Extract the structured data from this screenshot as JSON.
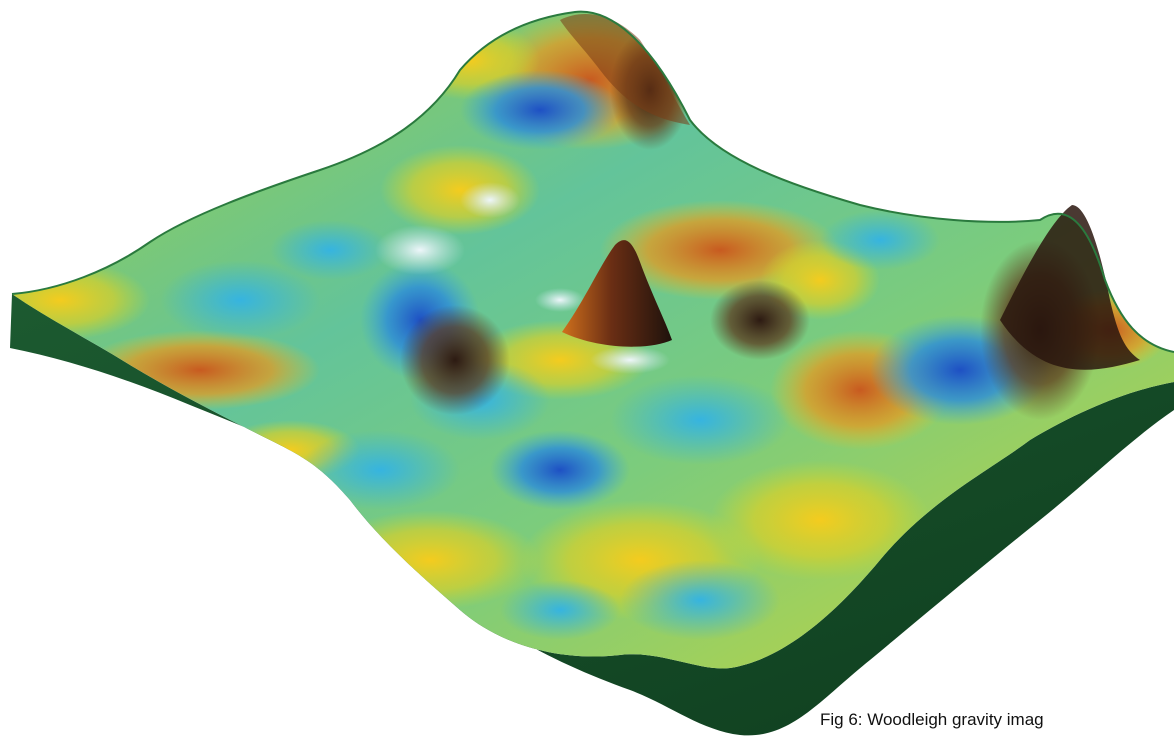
{
  "figure": {
    "caption": "Fig 6: Woodleigh gravity imag",
    "content": "3D gravity surface rendering",
    "colors": {
      "base": "#17502a",
      "edge": "#1f5e2e",
      "low": "#1f4fc0",
      "mid_low": "#3aa8d8",
      "mid": "#5cc6a4",
      "mid_high": "#a8cf3a",
      "high": "#f0c21c",
      "peak": "#c25a22",
      "shadow": "#3a2418",
      "highlight": "#e4f2f8"
    }
  }
}
